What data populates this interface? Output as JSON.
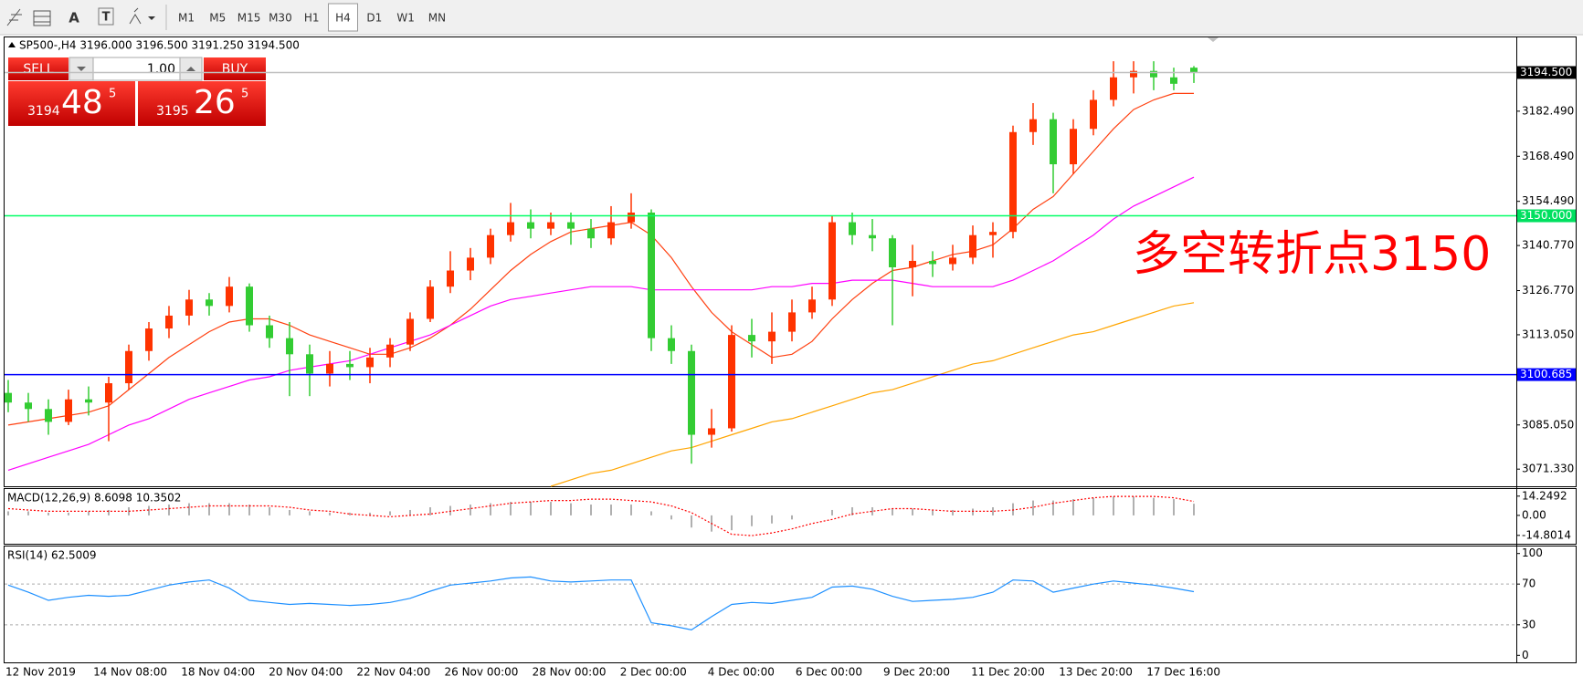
{
  "toolbar": {
    "tool_icons": [
      "A",
      "T"
    ],
    "timeframes": [
      "M1",
      "M5",
      "M15",
      "M30",
      "H1",
      "H4",
      "D1",
      "W1",
      "MN"
    ],
    "selected": "H4"
  },
  "trade_panel": {
    "sell": "SELL",
    "buy": "BUY",
    "volume": "1.00",
    "bid": {
      "figure": 3194,
      "pips": 48,
      "point": 5
    },
    "ask": {
      "figure": 3195,
      "pips": 26,
      "point": 5
    }
  },
  "chart_data": {
    "type": "candlestick",
    "title": "SP500-,H4  3196.000 3196.500 3191.250 3194.500",
    "up_color": "#ff3300",
    "down_color": "#33cc33",
    "ohlc": [
      [
        3095,
        3099,
        3089,
        3092
      ],
      [
        3092,
        3095,
        3086,
        3090
      ],
      [
        3090,
        3093,
        3082,
        3086
      ],
      [
        3086,
        3096,
        3085,
        3093
      ],
      [
        3093,
        3097,
        3088,
        3092
      ],
      [
        3092,
        3100,
        3080,
        3098
      ],
      [
        3098,
        3110,
        3096,
        3108
      ],
      [
        3108,
        3117,
        3105,
        3115
      ],
      [
        3115,
        3122,
        3112,
        3119
      ],
      [
        3119,
        3127,
        3116,
        3124
      ],
      [
        3124,
        3126,
        3119,
        3122
      ],
      [
        3122,
        3131,
        3120,
        3128
      ],
      [
        3128,
        3129,
        3114,
        3116
      ],
      [
        3116,
        3119,
        3109,
        3112
      ],
      [
        3112,
        3117,
        3094,
        3107
      ],
      [
        3107,
        3110,
        3094,
        3101
      ],
      [
        3101,
        3108,
        3097,
        3104
      ],
      [
        3104,
        3108,
        3099,
        3103
      ],
      [
        3103,
        3109,
        3098,
        3106
      ],
      [
        3106,
        3112,
        3103,
        3110
      ],
      [
        3110,
        3120,
        3108,
        3118
      ],
      [
        3118,
        3130,
        3117,
        3128
      ],
      [
        3128,
        3139,
        3126,
        3133
      ],
      [
        3133,
        3140,
        3130,
        3137
      ],
      [
        3137,
        3146,
        3135,
        3144
      ],
      [
        3144,
        3154,
        3142,
        3148
      ],
      [
        3148,
        3152,
        3143,
        3146
      ],
      [
        3146,
        3151,
        3144,
        3148
      ],
      [
        3148,
        3151,
        3141,
        3146
      ],
      [
        3146,
        3149,
        3140,
        3143
      ],
      [
        3143,
        3153,
        3141,
        3148
      ],
      [
        3148,
        3157,
        3146,
        3151
      ],
      [
        3151,
        3152,
        3108,
        3112
      ],
      [
        3112,
        3116,
        3104,
        3108
      ],
      [
        3108,
        3110,
        3073,
        3082
      ],
      [
        3082,
        3090,
        3078,
        3084
      ],
      [
        3084,
        3116,
        3083,
        3113
      ],
      [
        3113,
        3118,
        3106,
        3111
      ],
      [
        3111,
        3120,
        3104,
        3114
      ],
      [
        3114,
        3124,
        3111,
        3120
      ],
      [
        3120,
        3128,
        3118,
        3124
      ],
      [
        3124,
        3150,
        3122,
        3148
      ],
      [
        3148,
        3151,
        3141,
        3144
      ],
      [
        3144,
        3149,
        3139,
        3143
      ],
      [
        3143,
        3144,
        3116,
        3134
      ],
      [
        3134,
        3141,
        3125,
        3136
      ],
      [
        3136,
        3139,
        3131,
        3135
      ],
      [
        3135,
        3141,
        3133,
        3137
      ],
      [
        3137,
        3147,
        3135,
        3144
      ],
      [
        3144,
        3148,
        3137,
        3145
      ],
      [
        3145,
        3178,
        3143,
        3176
      ],
      [
        3176,
        3185,
        3172,
        3180
      ],
      [
        3180,
        3182,
        3157,
        3166
      ],
      [
        3166,
        3180,
        3163,
        3177
      ],
      [
        3177,
        3189,
        3175,
        3186
      ],
      [
        3186,
        3198,
        3184,
        3193
      ],
      [
        3193,
        3198,
        3188,
        3195
      ],
      [
        3195,
        3198,
        3189,
        3193
      ],
      [
        3193,
        3196,
        3189,
        3191
      ],
      [
        3196,
        3196.5,
        3191.25,
        3194.5
      ]
    ],
    "moving_averages": [
      {
        "color": "#ff4010",
        "values": [
          3085,
          3086,
          3087,
          3088,
          3089,
          3091,
          3096,
          3101,
          3106,
          3110,
          3114,
          3117,
          3118,
          3118,
          3116,
          3113,
          3111,
          3109,
          3107,
          3107,
          3109,
          3112,
          3116,
          3121,
          3127,
          3133,
          3138,
          3142,
          3145,
          3146,
          3147,
          3148,
          3144,
          3137,
          3128,
          3120,
          3114,
          3110,
          3106,
          3107,
          3111,
          3118,
          3124,
          3129,
          3133,
          3134,
          3136,
          3138,
          3139,
          3141,
          3146,
          3152,
          3156,
          3163,
          3170,
          3177,
          3183,
          3186,
          3188,
          3188
        ]
      },
      {
        "color": "#ff00ff",
        "values": [
          3071,
          3073,
          3075,
          3077,
          3079,
          3082,
          3085,
          3087,
          3090,
          3093,
          3095,
          3097,
          3099,
          3100,
          3102,
          3103,
          3104,
          3105,
          3107,
          3109,
          3111,
          3113,
          3116,
          3119,
          3122,
          3124,
          3125,
          3126,
          3127,
          3128,
          3128,
          3128,
          3127,
          3127,
          3127,
          3127,
          3127,
          3127,
          3128,
          3128,
          3129,
          3129,
          3130,
          3130,
          3130,
          3129,
          3128,
          3128,
          3128,
          3128,
          3130,
          3133,
          3136,
          3140,
          3144,
          3149,
          3153,
          3156,
          3159,
          3162
        ]
      },
      {
        "color": "#ffa500",
        "values": [
          null,
          null,
          null,
          null,
          null,
          null,
          null,
          null,
          null,
          null,
          null,
          null,
          null,
          null,
          null,
          null,
          null,
          null,
          null,
          null,
          null,
          null,
          null,
          null,
          null,
          null,
          null,
          3066,
          3068,
          3070,
          3071,
          3073,
          3075,
          3077,
          3078,
          3080,
          3082,
          3084,
          3086,
          3087,
          3089,
          3091,
          3093,
          3095,
          3096,
          3098,
          3100,
          3102,
          3104,
          3105,
          3107,
          3109,
          3111,
          3113,
          3114,
          3116,
          3118,
          3120,
          3122,
          3123
        ]
      }
    ],
    "ylim": [
      3066.0,
      3205.4
    ],
    "yticks": [
      {
        "value": 3182.49,
        "label": "3182.490"
      },
      {
        "value": 3168.49,
        "label": "3168.490"
      },
      {
        "value": 3154.49,
        "label": "3154.490"
      },
      {
        "value": 3140.77,
        "label": "3140.770"
      },
      {
        "value": 3126.77,
        "label": "3126.770"
      },
      {
        "value": 3113.05,
        "label": "3113.050"
      },
      {
        "value": 3085.05,
        "label": "3085.050"
      },
      {
        "value": 3071.33,
        "label": "3071.330"
      }
    ],
    "levels": [
      {
        "value": 3150,
        "label": "3150.000",
        "color": "#00ff66",
        "label_color": "#00e060"
      },
      {
        "value": 3100.685,
        "label": "3100.685",
        "color": "#0000ff",
        "label_color": "#0000ff"
      },
      {
        "value": 3194.5,
        "label": "3194.500",
        "color": "#c0c0c0",
        "label_color": "#000000"
      }
    ],
    "annotation": {
      "text": "多空转折点3150",
      "color": "#ff0000"
    },
    "time_labels": [
      "12 Nov 2019",
      "14 Nov 08:00",
      "18 Nov 04:00",
      "20 Nov 04:00",
      "22 Nov 04:00",
      "26 Nov 00:00",
      "28 Nov 00:00",
      "2 Dec 00:00",
      "4 Dec 00:00",
      "6 Dec 00:00",
      "9 Dec 20:00",
      "11 Dec 20:00",
      "13 Dec 20:00",
      "17 Dec 16:00"
    ],
    "macd": {
      "label": "MACD(12,26,9) 8.6098 10.3502",
      "hist_color": "#b0b0b0",
      "signal_color": "#ff0000",
      "histogram": [
        3,
        3,
        2,
        2,
        3,
        4,
        6,
        7,
        8,
        9,
        9,
        9,
        8,
        6,
        4,
        3,
        2,
        2,
        2,
        3,
        4,
        6,
        7,
        8,
        9,
        10,
        10,
        10,
        9,
        8,
        8,
        8,
        3,
        -3,
        -9,
        -12,
        -11,
        -8,
        -6,
        -3,
        0,
        4,
        6,
        6,
        5,
        5,
        4,
        4,
        5,
        6,
        9,
        11,
        11,
        12,
        13,
        14,
        14,
        13,
        12,
        8.6098
      ],
      "signal": [
        5,
        4,
        3,
        3,
        3,
        3,
        3,
        4,
        5,
        6,
        7,
        7,
        7,
        7,
        6,
        4,
        3,
        1,
        0,
        -1,
        0,
        1,
        3,
        5,
        7,
        9,
        10,
        11,
        11,
        12,
        12,
        11,
        10,
        7,
        2,
        -6,
        -14,
        -15,
        -13,
        -10,
        -6,
        -3,
        1,
        3,
        5,
        5,
        4,
        3,
        3,
        3,
        4,
        6,
        9,
        11,
        13,
        14,
        14,
        14,
        13,
        10.3502
      ],
      "ylim": [
        -21,
        19.5
      ],
      "yticks": [
        14.2492,
        {
          "value": 0,
          "label": "0.00"
        },
        -14.8014
      ]
    },
    "rsi": {
      "label": "RSI(14) 62.5009",
      "color": "#1e90ff",
      "values": [
        69,
        62,
        54,
        57,
        59,
        58,
        59,
        64,
        69,
        72,
        74,
        66,
        54,
        52,
        50,
        51,
        50,
        49,
        50,
        52,
        56,
        63,
        69,
        71,
        73,
        76,
        77,
        73,
        72,
        73,
        74,
        74,
        32,
        29,
        25,
        38,
        50,
        52,
        51,
        54,
        57,
        67,
        68,
        65,
        58,
        53,
        54,
        55,
        57,
        62,
        74,
        73,
        62,
        66,
        70,
        73,
        71,
        69,
        66,
        62.5009
      ],
      "ylim": [
        -6.9,
        106.9
      ],
      "yticks": [
        100,
        70,
        30,
        0
      ],
      "levels": [
        70,
        30
      ]
    }
  }
}
